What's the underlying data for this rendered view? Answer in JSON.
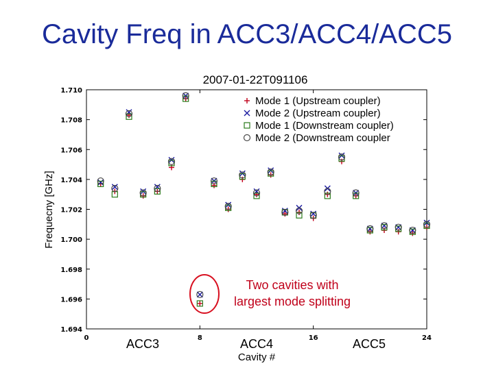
{
  "slide_title": "Cavity Freq in ACC3/ACC4/ACC5",
  "chart_data": {
    "type": "scatter",
    "title": "2007-01-22T091106",
    "xlabel": "Cavity #",
    "ylabel": "Frequecny [GHz]",
    "xlim": [
      0,
      24
    ],
    "ylim": [
      1.694,
      1.71
    ],
    "x_ticks": [
      "0",
      "8",
      "16",
      "24"
    ],
    "y_ticks": [
      "1.694",
      "1.696",
      "1.698",
      "1.700",
      "1.702",
      "1.704",
      "1.706",
      "1.708",
      "1.710"
    ],
    "group_labels": [
      "ACC3",
      "ACC4",
      "ACC5"
    ],
    "annotation": {
      "line1": "Two cavities with",
      "line2": "largest mode splitting"
    },
    "x": [
      1,
      2,
      3,
      4,
      5,
      6,
      7,
      8,
      9,
      10,
      11,
      12,
      13,
      14,
      15,
      16,
      17,
      18,
      19,
      20,
      21,
      22,
      23,
      24
    ],
    "series": [
      {
        "name": "Mode 1 (Upstream coupler)",
        "marker": "plus",
        "color": "#c0001a",
        "values": [
          1.7037,
          1.7032,
          1.7083,
          1.7029,
          1.7032,
          1.7048,
          1.7094,
          1.6957,
          1.7036,
          1.702,
          1.704,
          1.703,
          1.7043,
          1.7017,
          1.7018,
          1.7014,
          1.703,
          1.7052,
          1.7029,
          1.7005,
          1.7006,
          1.7005,
          1.7004,
          1.7008
        ]
      },
      {
        "name": "Mode 2 (Upstream coupler)",
        "marker": "cross",
        "color": "#1a1aa0",
        "values": [
          1.7038,
          1.7035,
          1.7085,
          1.7032,
          1.7035,
          1.7053,
          1.7096,
          1.6963,
          1.7039,
          1.7023,
          1.7044,
          1.7032,
          1.7046,
          1.7019,
          1.7021,
          1.7017,
          1.7034,
          1.7056,
          1.7031,
          1.7007,
          1.7009,
          1.7008,
          1.7006,
          1.7011
        ]
      },
      {
        "name": "Mode 1 (Downstream coupler)",
        "marker": "square",
        "color": "#2a7a1a",
        "values": [
          1.7037,
          1.703,
          1.7082,
          1.703,
          1.7032,
          1.7051,
          1.7094,
          1.6957,
          1.7037,
          1.7021,
          1.7042,
          1.7029,
          1.7044,
          1.7018,
          1.7016,
          1.7016,
          1.7029,
          1.7054,
          1.7029,
          1.7006,
          1.7008,
          1.7007,
          1.7005,
          1.7009
        ]
      },
      {
        "name": "Mode 2 (Downstream coupler",
        "marker": "circle",
        "color": "#4a4a4a",
        "values": [
          1.7039,
          1.7034,
          1.7084,
          1.7031,
          1.7034,
          1.7052,
          1.7096,
          1.6963,
          1.7039,
          1.7022,
          1.7043,
          1.7031,
          1.7045,
          1.7018,
          1.7019,
          1.7016,
          1.7032,
          1.7055,
          1.7031,
          1.7007,
          1.7009,
          1.7008,
          1.7006,
          1.701
        ]
      }
    ]
  }
}
